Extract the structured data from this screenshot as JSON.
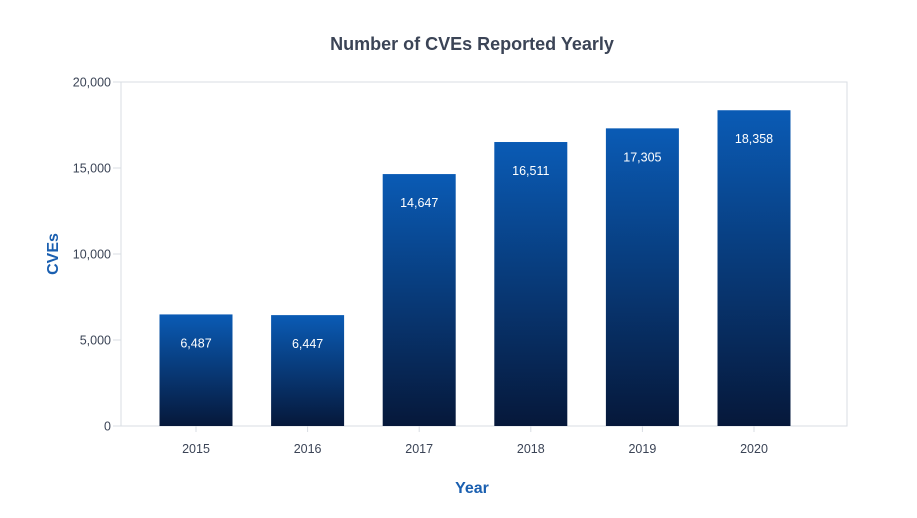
{
  "chart_data": {
    "type": "bar",
    "title": "Number of CVEs Reported Yearly",
    "xlabel": "Year",
    "ylabel": "CVEs",
    "categories": [
      "2015",
      "2016",
      "2017",
      "2018",
      "2019",
      "2020"
    ],
    "values": [
      6487,
      6447,
      14647,
      16511,
      17305,
      18358
    ],
    "data_labels": [
      "6,487",
      "6,447",
      "14,647",
      "16,511",
      "17,305",
      "18,358"
    ],
    "ylim": [
      0,
      20000
    ],
    "yticks": [
      0,
      5000,
      10000,
      15000,
      20000
    ],
    "ytick_labels": [
      "0",
      "5,000",
      "10,000",
      "15,000",
      "20,000"
    ],
    "grid": false,
    "legend": "none",
    "colors": {
      "bar_top": "#0a5bb5",
      "bar_bottom": "#06183a",
      "axis_title": "#1a5fb0",
      "title": "#3b4456",
      "tick": "#3b4456",
      "frame": "#d9dde3"
    }
  }
}
